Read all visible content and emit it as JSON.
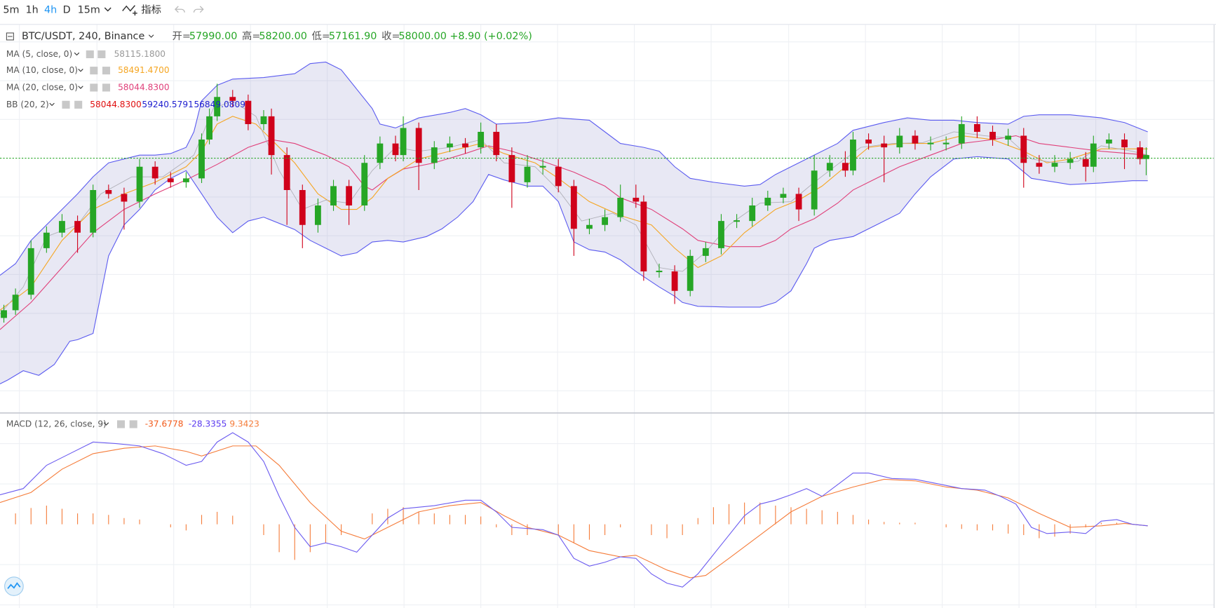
{
  "toolbar": {
    "intervals": [
      "5m",
      "1h",
      "4h",
      "D",
      "15m"
    ],
    "indicators_button": "指标"
  },
  "legend": {
    "symbol": "BTC/USDT, 240, Binance",
    "ohlc": [
      {
        "label": "开=",
        "value": "57990.00"
      },
      {
        "label": "高=",
        "value": "58200.00"
      },
      {
        "label": "低=",
        "value": "57161.90"
      },
      {
        "label": "收=",
        "value": "58000.00"
      }
    ],
    "change": "+8.90 (+0.02%)"
  },
  "indicators": [
    {
      "name": "MA (5, close, 0)",
      "values": [
        "58115.1800"
      ]
    },
    {
      "name": "MA (10, close, 0)",
      "values": [
        "58491.4700"
      ]
    },
    {
      "name": "MA (20, close, 0)",
      "values": [
        "58044.8300"
      ]
    },
    {
      "name": "BB (20, 2)",
      "values": [
        "58044.8300",
        "59240.5791",
        "56849.0809"
      ]
    }
  ],
  "macd": {
    "name": "MACD (12, 26, close, 9)",
    "values": [
      "-37.6778",
      "-28.3355",
      "9.3423"
    ]
  }
}
